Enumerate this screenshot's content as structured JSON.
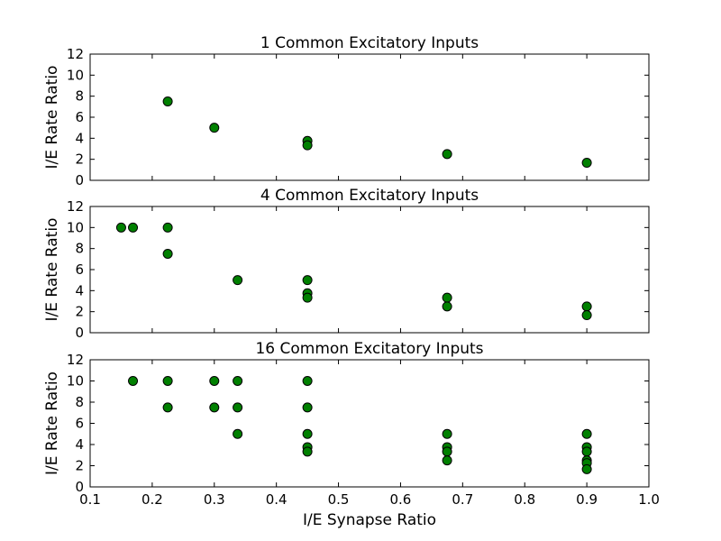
{
  "figure": {
    "xlabel": "I/E Synapse Ratio"
  },
  "style": {
    "marker_color": "#008000",
    "marker_edge": "#000000"
  },
  "chart_data": [
    {
      "type": "scatter",
      "title": "1 Common Excitatory Inputs",
      "ylabel": "I/E Rate Ratio",
      "xlim": [
        0.1,
        1.0
      ],
      "ylim": [
        0,
        12
      ],
      "yticks": [
        0,
        2,
        4,
        6,
        8,
        10,
        12
      ],
      "show_xticklabels": false,
      "points": [
        {
          "x": 0.225,
          "y": 7.5
        },
        {
          "x": 0.3,
          "y": 5.0
        },
        {
          "x": 0.45,
          "y": 3.75
        },
        {
          "x": 0.45,
          "y": 3.33
        },
        {
          "x": 0.675,
          "y": 2.5
        },
        {
          "x": 0.9,
          "y": 1.67
        }
      ]
    },
    {
      "type": "scatter",
      "title": "4 Common Excitatory Inputs",
      "ylabel": "I/E Rate Ratio",
      "xlim": [
        0.1,
        1.0
      ],
      "ylim": [
        0,
        12
      ],
      "yticks": [
        0,
        2,
        4,
        6,
        8,
        10,
        12
      ],
      "show_xticklabels": false,
      "points": [
        {
          "x": 0.15,
          "y": 10.0
        },
        {
          "x": 0.169,
          "y": 10.0
        },
        {
          "x": 0.225,
          "y": 10.0
        },
        {
          "x": 0.225,
          "y": 7.5
        },
        {
          "x": 0.3375,
          "y": 5.0
        },
        {
          "x": 0.45,
          "y": 5.0
        },
        {
          "x": 0.45,
          "y": 3.75
        },
        {
          "x": 0.45,
          "y": 3.33
        },
        {
          "x": 0.675,
          "y": 3.33
        },
        {
          "x": 0.675,
          "y": 2.5
        },
        {
          "x": 0.9,
          "y": 2.5
        },
        {
          "x": 0.9,
          "y": 1.67
        }
      ]
    },
    {
      "type": "scatter",
      "title": "16 Common Excitatory Inputs",
      "ylabel": "I/E Rate Ratio",
      "xlim": [
        0.1,
        1.0
      ],
      "ylim": [
        0,
        12
      ],
      "yticks": [
        0,
        2,
        4,
        6,
        8,
        10,
        12
      ],
      "xticks": [
        0.1,
        0.2,
        0.3,
        0.4,
        0.5,
        0.6,
        0.7,
        0.8,
        0.9,
        1.0
      ],
      "show_xticklabels": true,
      "points": [
        {
          "x": 0.169,
          "y": 10.0
        },
        {
          "x": 0.225,
          "y": 10.0
        },
        {
          "x": 0.225,
          "y": 7.5
        },
        {
          "x": 0.3,
          "y": 10.0
        },
        {
          "x": 0.3,
          "y": 7.5
        },
        {
          "x": 0.3375,
          "y": 10.0
        },
        {
          "x": 0.3375,
          "y": 7.5
        },
        {
          "x": 0.3375,
          "y": 5.0
        },
        {
          "x": 0.45,
          "y": 10.0
        },
        {
          "x": 0.45,
          "y": 7.5
        },
        {
          "x": 0.45,
          "y": 5.0
        },
        {
          "x": 0.45,
          "y": 3.75
        },
        {
          "x": 0.45,
          "y": 3.33
        },
        {
          "x": 0.675,
          "y": 5.0
        },
        {
          "x": 0.675,
          "y": 3.75
        },
        {
          "x": 0.675,
          "y": 3.33
        },
        {
          "x": 0.675,
          "y": 2.5
        },
        {
          "x": 0.9,
          "y": 5.0
        },
        {
          "x": 0.9,
          "y": 3.75
        },
        {
          "x": 0.9,
          "y": 3.33
        },
        {
          "x": 0.9,
          "y": 2.5
        },
        {
          "x": 0.9,
          "y": 2.25
        },
        {
          "x": 0.9,
          "y": 1.67
        }
      ]
    }
  ]
}
